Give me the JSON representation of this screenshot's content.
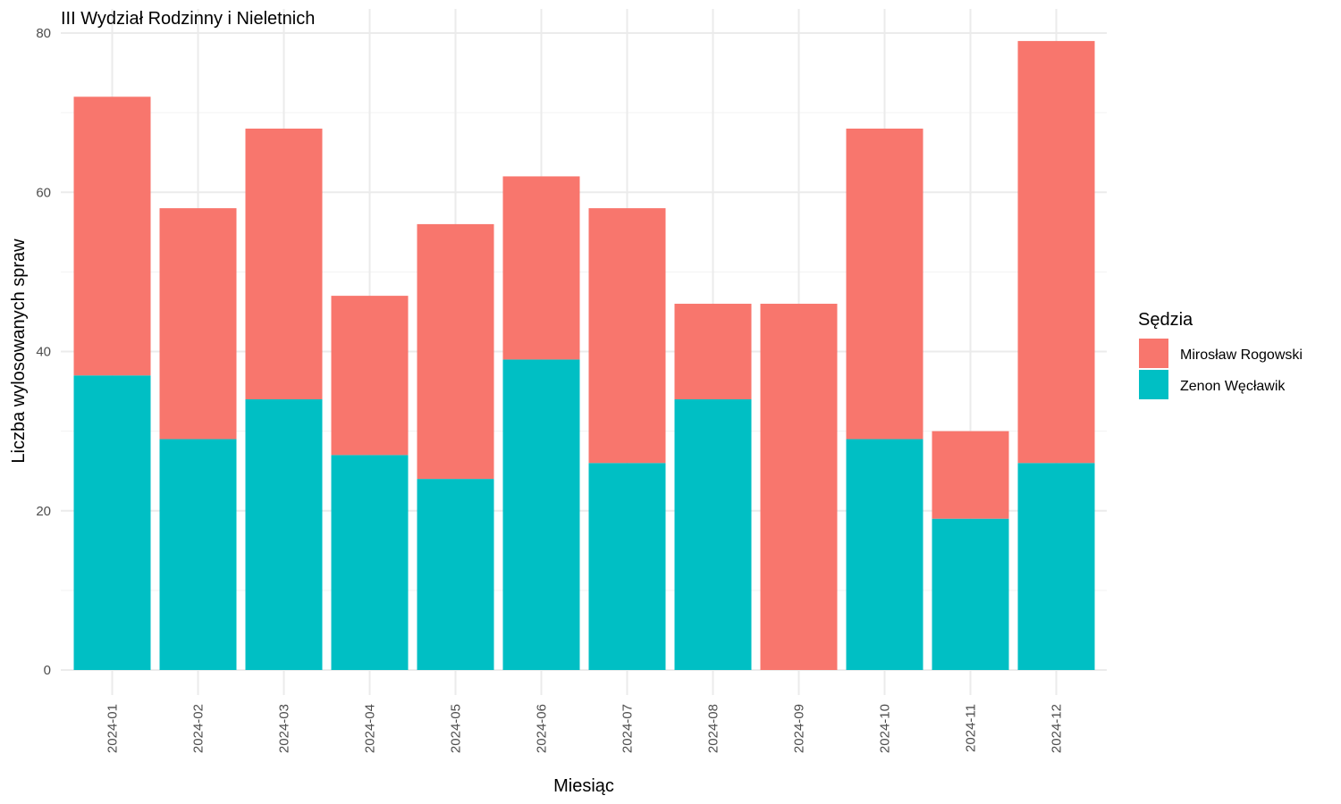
{
  "chart_data": {
    "type": "bar",
    "stacked": true,
    "title": "III Wydział Rodzinny i Nieletnich",
    "xlabel": "Miesiąc",
    "ylabel": "Liczba wylosowanych spraw",
    "ylim": [
      0,
      80
    ],
    "y_ticks": [
      0,
      20,
      40,
      60,
      80
    ],
    "grid": true,
    "legend_title": "Sędzia",
    "legend_position": "right",
    "categories": [
      "2024-01",
      "2024-02",
      "2024-03",
      "2024-04",
      "2024-05",
      "2024-06",
      "2024-07",
      "2024-08",
      "2024-09",
      "2024-10",
      "2024-11",
      "2024-12"
    ],
    "series": [
      {
        "name": "Zenon Węcławik",
        "color": "#00BFC4",
        "values": [
          37,
          29,
          34,
          27,
          24,
          39,
          26,
          34,
          0,
          29,
          19,
          26
        ]
      },
      {
        "name": "Mirosław Rogowski",
        "color": "#F8766D",
        "values": [
          35,
          29,
          34,
          20,
          32,
          23,
          32,
          12,
          46,
          39,
          11,
          53
        ]
      }
    ],
    "legend_order": [
      "Mirosław Rogowski",
      "Zenon Węcławik"
    ]
  }
}
